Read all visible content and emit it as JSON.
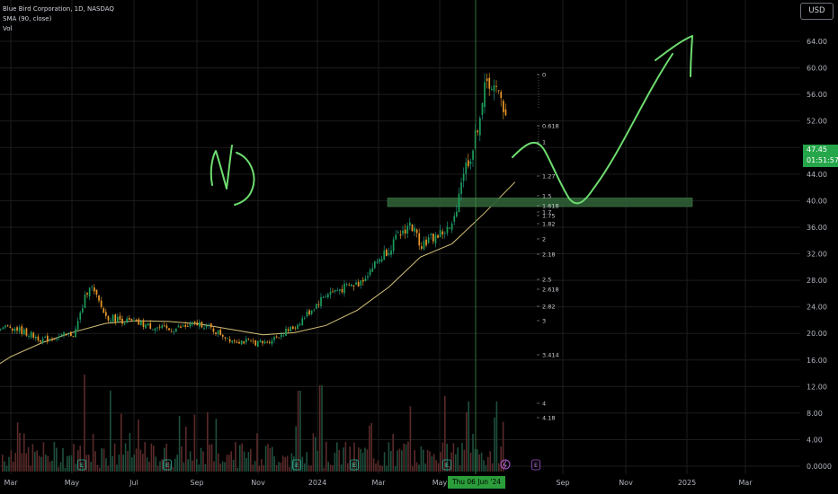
{
  "header": {
    "symbol_line": "Blue Bird Corporation, 1D, NASDAQ",
    "sma_line": "SMA (90, close)",
    "vol_line": "Vol",
    "currency": "USD"
  },
  "price_tag": {
    "price": "47.45",
    "countdown": "01:51:57"
  },
  "crosshair_date": "Thu 06 Jun '24",
  "y_axis": {
    "labels": [
      "64.00",
      "60.00",
      "56.00",
      "52.00",
      "48.00",
      "44.00",
      "40.00",
      "36.00",
      "32.00",
      "28.00",
      "24.00",
      "20.00",
      "16.00",
      "12.00",
      "8.00",
      "4.00",
      "0.0000"
    ],
    "values": [
      64,
      60,
      56,
      52,
      48,
      44,
      40,
      36,
      32,
      28,
      24,
      20,
      16,
      12,
      8,
      4,
      0
    ]
  },
  "x_axis": {
    "labels": [
      "Mar",
      "May",
      "Jul",
      "Sep",
      "Nov",
      "2024",
      "Mar",
      "May",
      "Sep",
      "Nov",
      "2025",
      "Mar"
    ]
  },
  "fib_levels": [
    {
      "label": "0",
      "value": 0
    },
    {
      "label": "0.618",
      "value": 0.618
    },
    {
      "label": "1",
      "value": 1
    },
    {
      "label": "1.27",
      "value": 1.27
    },
    {
      "label": "1.5",
      "value": 1.5
    },
    {
      "label": "1.618",
      "value": 1.618
    },
    {
      "label": "1.7",
      "value": 1.7
    },
    {
      "label": "1.75",
      "value": 1.75
    },
    {
      "label": "1.82",
      "value": 1.82
    },
    {
      "label": "2",
      "value": 2
    },
    {
      "label": "2.18",
      "value": 2.18
    },
    {
      "label": "2.5",
      "value": 2.5
    },
    {
      "label": "2.618",
      "value": 2.618
    },
    {
      "label": "2.82",
      "value": 2.82
    },
    {
      "label": "3",
      "value": 3
    },
    {
      "label": "3.414",
      "value": 3.414
    },
    {
      "label": "4",
      "value": 4
    },
    {
      "label": "4.18",
      "value": 4.18
    }
  ],
  "support_zone": {
    "low": 39.1,
    "high": 40.4
  },
  "event_markers": {
    "earnings_label": "E",
    "dividend_label": "E"
  },
  "chart_data": {
    "type": "candlestick",
    "title": "",
    "series": [
      {
        "name": "SMA (90, close)",
        "x": [
          "2023-02",
          "2023-03",
          "2023-04",
          "2023-05",
          "2023-06",
          "2023-07",
          "2023-08",
          "2023-09",
          "2023-10",
          "2023-11",
          "2023-12",
          "2024-01",
          "2024-02",
          "2024-03",
          "2024-04",
          "2024-05",
          "2024-06",
          "2024-07"
        ],
        "values": [
          13.5,
          16.5,
          18.6,
          20.2,
          21.5,
          21.9,
          21.8,
          21.4,
          20.6,
          19.8,
          20.1,
          21.2,
          23.5,
          27.0,
          31.5,
          33.5,
          38.0,
          42.8
        ]
      }
    ],
    "price_path": {
      "x": [
        "2023-02",
        "2023-03",
        "2023-04",
        "2023-05",
        "2023-05-15",
        "2023-06",
        "2023-07",
        "2023-08",
        "2023-09",
        "2023-10",
        "2023-11",
        "2023-12",
        "2024-01",
        "2024-02",
        "2024-03",
        "2024-03-20",
        "2024-04",
        "2024-05",
        "2024-05-10",
        "2024-05-20",
        "2024-06-01",
        "2024-06-06",
        "2024-06-15",
        "2024-06-25",
        "2024-07-01"
      ],
      "close": [
        20.5,
        21.0,
        19.0,
        20.0,
        27.5,
        22.5,
        21.5,
        20.5,
        21.5,
        19.0,
        18.5,
        21.0,
        26.0,
        27.5,
        33.0,
        36.5,
        33.5,
        36.0,
        44.0,
        47.5,
        56.5,
        58.0,
        55.5,
        52.5,
        47.45
      ]
    },
    "volume": {
      "note": "daily volume histogram bars",
      "spikes_relative": [
        0.18,
        0.85,
        0.3,
        0.7,
        0.2,
        0.45,
        0.25,
        0.2,
        0.75,
        0.3,
        0.8,
        0.35,
        0.55,
        0.5,
        0.95,
        0.4,
        0.95
      ]
    },
    "y_range": [
      0,
      66
    ],
    "x_range": [
      "2023-02",
      "2025-04"
    ],
    "grid": true,
    "legend_position": "top-left"
  }
}
